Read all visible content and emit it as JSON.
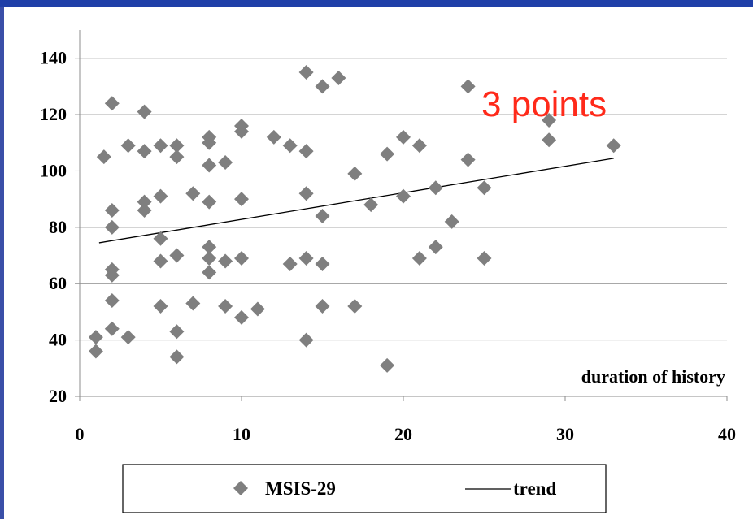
{
  "chart_data": {
    "type": "scatter",
    "title": "",
    "xlabel": "duration of history",
    "ylabel": "",
    "xlim": [
      0,
      40
    ],
    "ylim": [
      20,
      150
    ],
    "xticks": [
      0,
      10,
      20,
      30,
      40
    ],
    "yticks": [
      20,
      40,
      60,
      80,
      100,
      120,
      140
    ],
    "grid": "horizontal",
    "legend_placement": "bottom",
    "annotation": "3 points",
    "colors": {
      "marker": "#7f7f7f",
      "trend": "#000000",
      "annotation": "#ff2a1a",
      "frame": "#1f3fa8"
    },
    "series": [
      {
        "name": "MSIS-29",
        "marker": "diamond",
        "points": [
          [
            1,
            41
          ],
          [
            1,
            36
          ],
          [
            1.5,
            105
          ],
          [
            2,
            124
          ],
          [
            2,
            86
          ],
          [
            2,
            80
          ],
          [
            2,
            65
          ],
          [
            2,
            63
          ],
          [
            2,
            54
          ],
          [
            2,
            44
          ],
          [
            3,
            109
          ],
          [
            3,
            41
          ],
          [
            4,
            121
          ],
          [
            4,
            107
          ],
          [
            4,
            89
          ],
          [
            4,
            86
          ],
          [
            5,
            109
          ],
          [
            5,
            91
          ],
          [
            5,
            76
          ],
          [
            5,
            68
          ],
          [
            5,
            52
          ],
          [
            6,
            109
          ],
          [
            6,
            105
          ],
          [
            6,
            70
          ],
          [
            6,
            43
          ],
          [
            6,
            34
          ],
          [
            7,
            92
          ],
          [
            7,
            53
          ],
          [
            8,
            112
          ],
          [
            8,
            110
          ],
          [
            8,
            102
          ],
          [
            8,
            89
          ],
          [
            8,
            73
          ],
          [
            8,
            69
          ],
          [
            8,
            64
          ],
          [
            9,
            103
          ],
          [
            9,
            68
          ],
          [
            9,
            52
          ],
          [
            10,
            116
          ],
          [
            10,
            114
          ],
          [
            10,
            90
          ],
          [
            10,
            69
          ],
          [
            10,
            48
          ],
          [
            11,
            51
          ],
          [
            12,
            112
          ],
          [
            13,
            109
          ],
          [
            13,
            67
          ],
          [
            14,
            135
          ],
          [
            14,
            107
          ],
          [
            14,
            92
          ],
          [
            14,
            69
          ],
          [
            14,
            40
          ],
          [
            15,
            130
          ],
          [
            15,
            84
          ],
          [
            15,
            67
          ],
          [
            15,
            52
          ],
          [
            16,
            133
          ],
          [
            17,
            99
          ],
          [
            17,
            52
          ],
          [
            18,
            88
          ],
          [
            19,
            106
          ],
          [
            19,
            31
          ],
          [
            20,
            112
          ],
          [
            20,
            91
          ],
          [
            21,
            109
          ],
          [
            21,
            69
          ],
          [
            22,
            94
          ],
          [
            22,
            73
          ],
          [
            23,
            82
          ],
          [
            24,
            130
          ],
          [
            24,
            104
          ],
          [
            25,
            94
          ],
          [
            25,
            69
          ],
          [
            29,
            118
          ],
          [
            29,
            111
          ],
          [
            33,
            109
          ]
        ]
      },
      {
        "name": "trend",
        "type": "line",
        "x": [
          1.2,
          33
        ],
        "y": [
          74.5,
          104.5
        ]
      }
    ]
  }
}
